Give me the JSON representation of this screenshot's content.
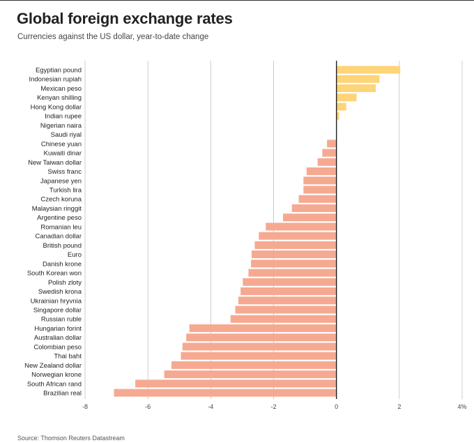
{
  "title": "Global foreign exchange rates",
  "subtitle": "Currencies against the US dollar, year-to-date change",
  "source": "Source: Thomson Reuters Datastream",
  "colors": {
    "positive": "#fdd477",
    "negative": "#f6a991",
    "grid": "#cccccc",
    "zero_line": "#222222"
  },
  "chart_data": {
    "type": "bar",
    "orientation": "horizontal",
    "categories": [
      "Egyptian pound",
      "Indonesian rupiah",
      "Mexican peso",
      "Kenyan shilling",
      "Hong Kong dollar",
      "Indian rupee",
      "Nigerian naira",
      "Saudi riyal",
      "Chinese yuan",
      "Kuwaiti dinar",
      "New Taiwan dollar",
      "Swiss franc",
      "Japanese yen",
      "Turkish lira",
      "Czech koruna",
      "Malaysian ringgit",
      "Argentine peso",
      "Romanian leu",
      "Canadian dollar",
      "British pound",
      "Euro",
      "Danish krone",
      "South Korean won",
      "Polish zloty",
      "Swedish krona",
      "Ukrainian hryvnia",
      "Singapore dollar",
      "Russian ruble",
      "Hungarian forint",
      "Australian dollar",
      "Colombian peso",
      "Thai baht",
      "New Zealand dollar",
      "Norwegian krone",
      "South African rand",
      "Brazilian real"
    ],
    "values": [
      2.03,
      1.37,
      1.25,
      0.64,
      0.31,
      0.09,
      0.0,
      0.0,
      -0.3,
      -0.45,
      -0.6,
      -0.95,
      -1.05,
      -1.05,
      -1.2,
      -1.42,
      -1.7,
      -2.25,
      -2.47,
      -2.6,
      -2.7,
      -2.72,
      -2.8,
      -2.98,
      -3.05,
      -3.12,
      -3.22,
      -3.37,
      -4.68,
      -4.78,
      -4.9,
      -4.95,
      -5.25,
      -5.48,
      -6.4,
      -7.08
    ],
    "xlim": [
      -8,
      4
    ],
    "xticks": [
      -8,
      -6,
      -4,
      -2,
      0,
      2,
      4
    ],
    "xtick_labels": [
      "-8",
      "-6",
      "-4",
      "-2",
      "0",
      "2",
      "4%"
    ],
    "grid": true,
    "title": "Global foreign exchange rates",
    "xlabel": "",
    "ylabel": ""
  }
}
